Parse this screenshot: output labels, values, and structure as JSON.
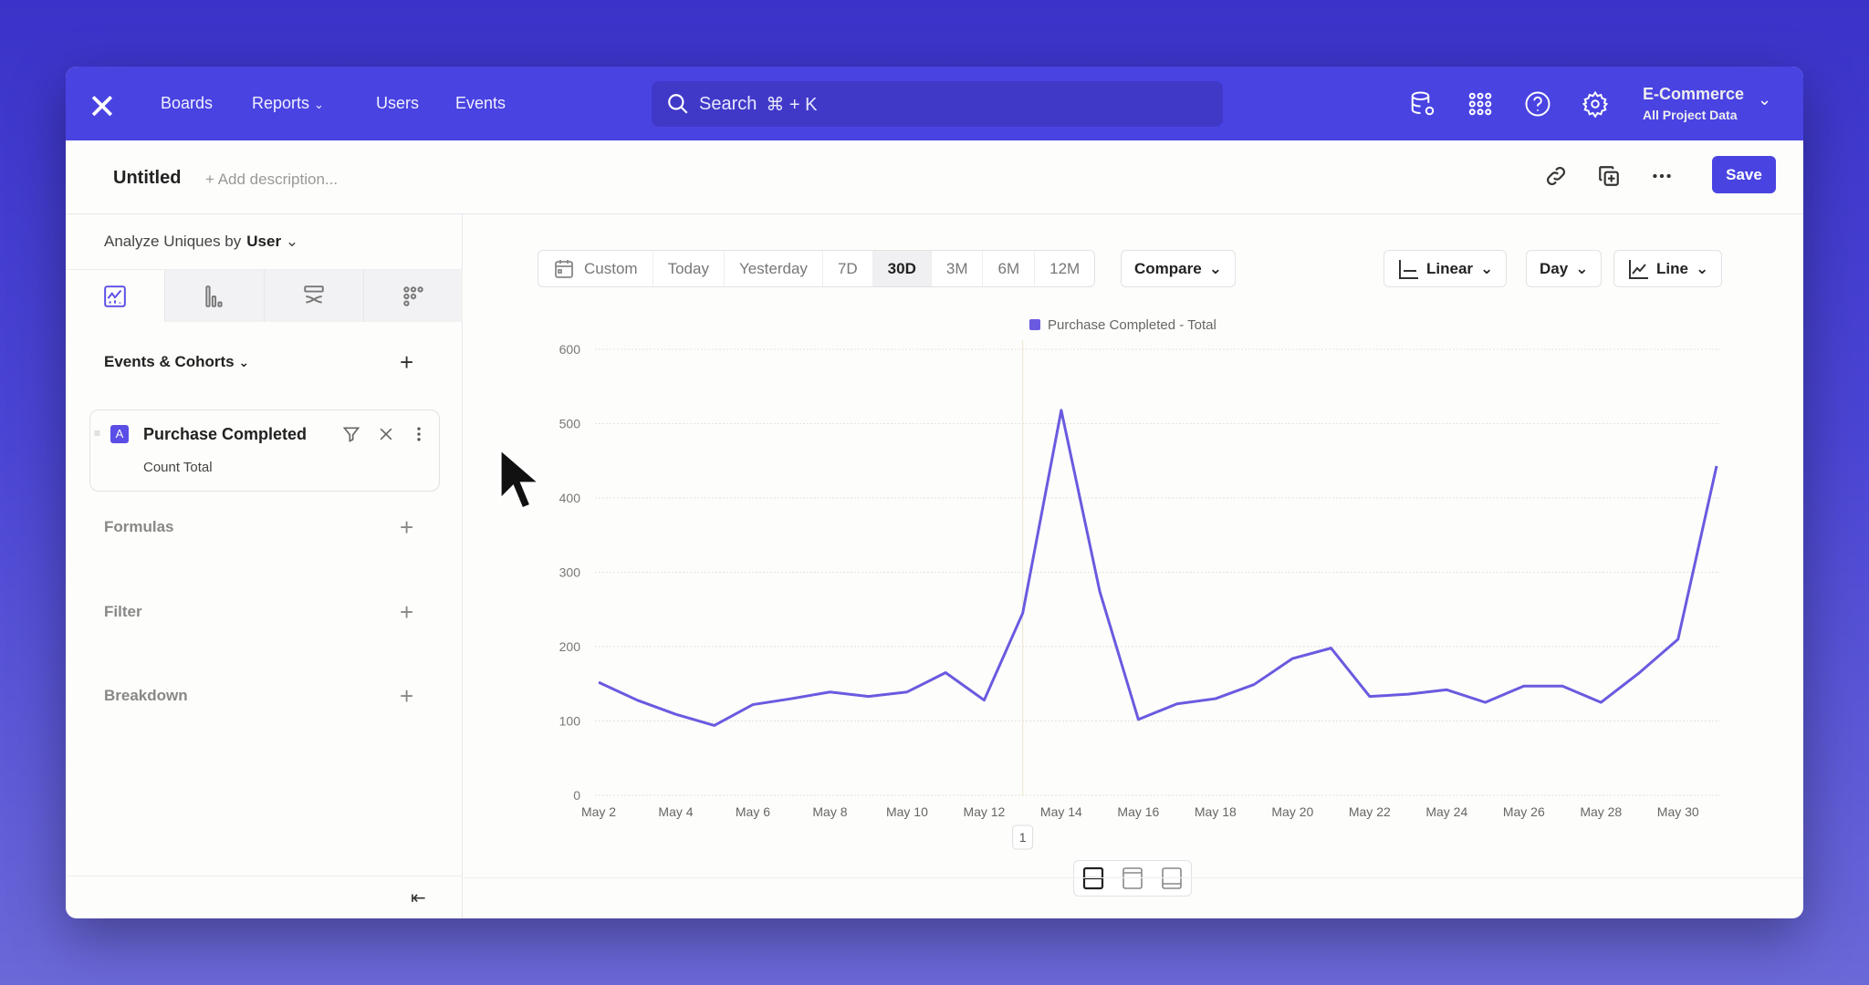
{
  "nav": {
    "links": [
      "Boards",
      "Reports",
      "Users",
      "Events"
    ],
    "search_placeholder": "Search",
    "search_shortcut": "⌘ + K",
    "project_name": "E-Commerce",
    "project_scope": "All Project Data",
    "icons": [
      "database-settings-icon",
      "apps-grid-icon",
      "help-icon",
      "gear-icon"
    ]
  },
  "titlebar": {
    "title": "Untitled",
    "description_placeholder": "+ Add description...",
    "save_label": "Save"
  },
  "sidebar": {
    "analyze_label": "Analyze Uniques by",
    "analyze_value": "User",
    "events_label": "Events & Cohorts",
    "event": {
      "badge": "A",
      "name": "Purchase Completed",
      "measure": "Count Total"
    },
    "sections": [
      "Formulas",
      "Filter",
      "Breakdown"
    ]
  },
  "toolbar": {
    "ranges": [
      "Custom",
      "Today",
      "Yesterday",
      "7D",
      "30D",
      "3M",
      "6M",
      "12M"
    ],
    "selected_range": "30D",
    "compare_label": "Compare",
    "scale_label": "Linear",
    "interval_label": "Day",
    "chart_type_label": "Line"
  },
  "colors": {
    "accent": "#4943e2",
    "series": "#6a5ae0"
  },
  "chart_data": {
    "type": "line",
    "legend": [
      "Purchase Completed - Total"
    ],
    "legend_placement": "top",
    "x": [
      "May 2",
      "May 3",
      "May 4",
      "May 5",
      "May 6",
      "May 7",
      "May 8",
      "May 9",
      "May 10",
      "May 11",
      "May 12",
      "May 13",
      "May 14",
      "May 15",
      "May 16",
      "May 17",
      "May 18",
      "May 19",
      "May 20",
      "May 21",
      "May 22",
      "May 23",
      "May 24",
      "May 25",
      "May 26",
      "May 27",
      "May 28",
      "May 29",
      "May 30",
      "May 31"
    ],
    "series": [
      {
        "name": "Purchase Completed - Total",
        "values": [
          152,
          128,
          109,
          94,
          122,
          130,
          139,
          133,
          139,
          165,
          128,
          245,
          518,
          274,
          102,
          123,
          130,
          149,
          184,
          198,
          133,
          136,
          142,
          125,
          147,
          147,
          125,
          165,
          210,
          443
        ]
      }
    ],
    "x_tick_labels": [
      "May 2",
      "May 4",
      "May 6",
      "May 8",
      "May 10",
      "May 12",
      "May 14",
      "May 16",
      "May 18",
      "May 20",
      "May 22",
      "May 24",
      "May 26",
      "May 28",
      "May 30"
    ],
    "y_ticks": [
      0,
      100,
      200,
      300,
      400,
      500,
      600
    ],
    "ylim": [
      0,
      600
    ],
    "grid": true,
    "annotation": {
      "x": "May 13",
      "label": "1"
    }
  }
}
